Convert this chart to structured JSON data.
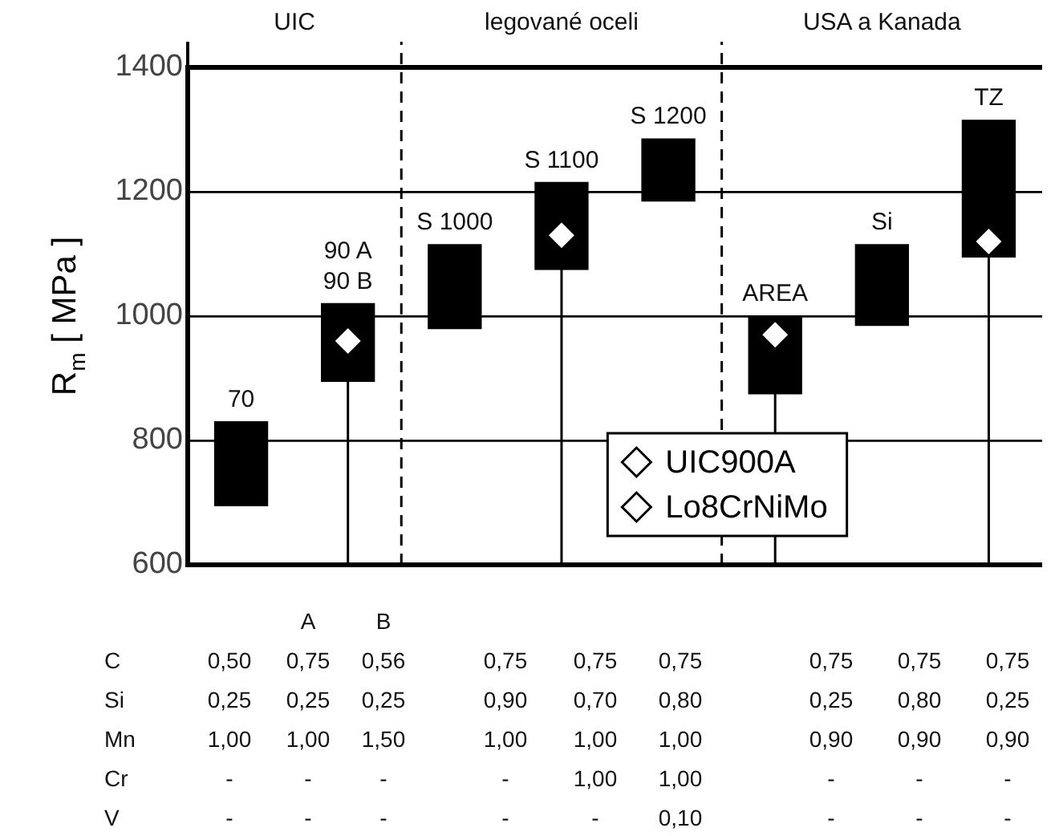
{
  "chart_data": {
    "type": "bar",
    "ylabel": "R$_{m}$ [ MPa ]",
    "categories": [
      null,
      null,
      null,
      null,
      null,
      null,
      null,
      null
    ],
    "tick_labels": "y",
    "ylim": [
      600,
      1400
    ],
    "yticks": [
      600,
      800,
      1000,
      1200,
      1400
    ],
    "grid": "y",
    "legend": "bottom",
    "series": [
      {
        "color": "#000000",
        "base": [
          695,
          895,
          980,
          1075,
          1185,
          875,
          985,
          1095
        ],
        "values": [
          135,
          125,
          135,
          140,
          100,
          125,
          130,
          220
        ]
      },
      {
        "type": "lollipop",
        "name": "UIC900A",
        "color": "#ffffff",
        "marker": "diamond",
        "values": [
          null,
          960,
          null,
          null,
          null,
          970,
          null,
          null
        ]
      },
      {
        "type": "lollipop",
        "name": "Lo8CrNiMo",
        "color": "#ffffff",
        "marker": "diamond",
        "values": [
          null,
          null,
          null,
          1130,
          null,
          null,
          null,
          1120
        ]
      }
    ],
    "annotations": [
      {
        "text": "70",
        "y": 830
      },
      {
        "text": "90 A\n90 B",
        "y": 1020
      },
      {
        "text": "S 1000",
        "y": 1115
      },
      {
        "text": "S 1100",
        "y": 1215
      },
      {
        "text": "S 1200",
        "y": 1285
      },
      {
        "text": "AREA",
        "y": 1000
      },
      {
        "text": "Si",
        "y": 1115
      },
      {
        "text": "TZ",
        "y": 1315
      },
      "UIC",
      "legované oceli",
      "USA a Kanada",
      "\t\tA\tB",
      "C\t0,50\t0,75\t0,56\t0,75\t0,75\t0,75\t0,75\t0,75\t0,75",
      "Si\t0,25\t0,25\t0,25\t0,90\t0,70\t0,80\t0,25\t0,80\t0,25",
      "Mn\t1,00\t1,00\t1,50\t1,00\t1,00\t1,00\t0,90\t0,90\t0,90",
      "Cr\t-\t-\t-\t-\t1,00\t1,00\t-\t-\t-",
      "V\t-\t-\t-\t-\t-\t0,10\t-\t-\t-"
    ]
  }
}
